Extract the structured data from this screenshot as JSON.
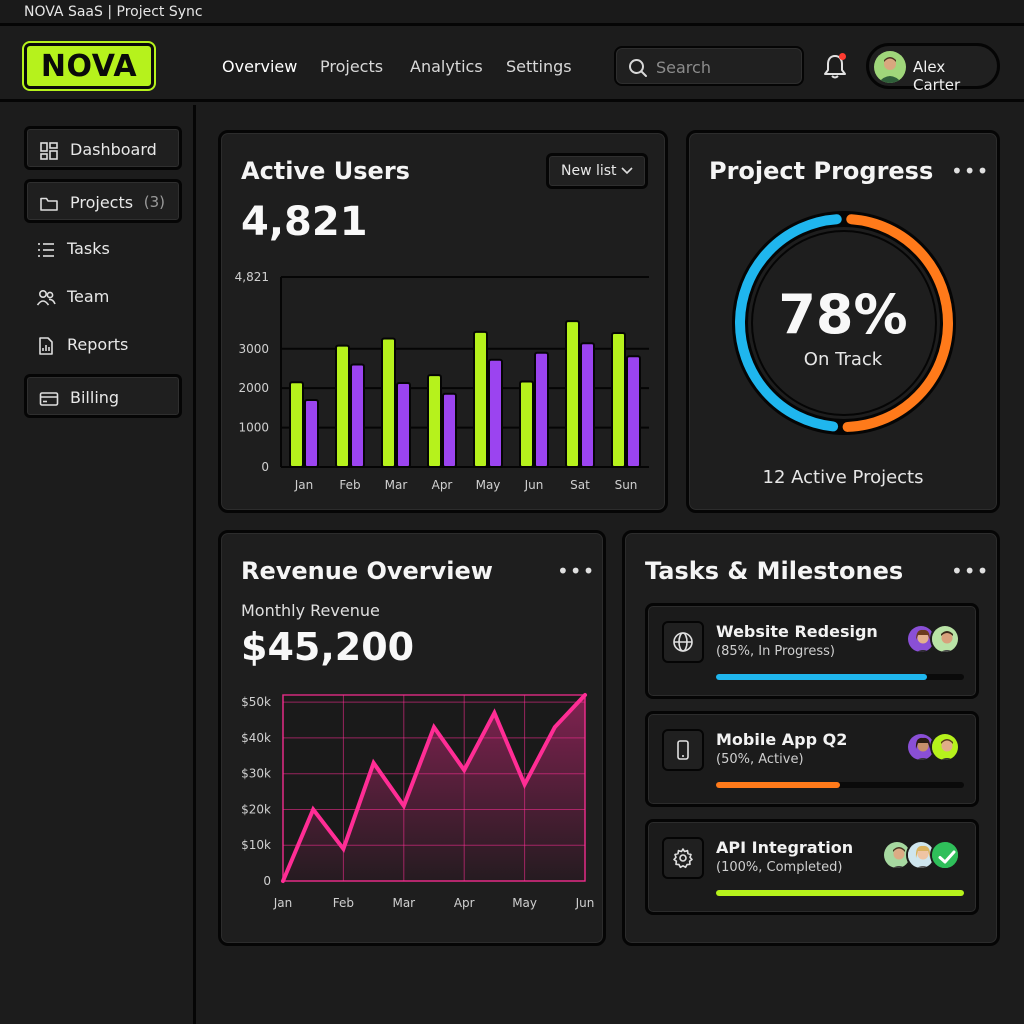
{
  "window": {
    "title": "NOVA SaaS | Project Sync"
  },
  "header": {
    "logo": "NOVA",
    "nav": [
      "Overview",
      "Projects",
      "Analytics",
      "Settings"
    ],
    "active_nav": "Overview",
    "search_placeholder": "Search",
    "user_name": "Alex Carter",
    "has_notification": true
  },
  "sidebar": {
    "items": [
      {
        "label": "Dashboard",
        "icon": "dashboard-icon",
        "boxed": true
      },
      {
        "label": "Projects",
        "count": "(3)",
        "icon": "folder-icon",
        "boxed": true
      },
      {
        "label": "Tasks",
        "icon": "list-icon",
        "boxed": false
      },
      {
        "label": "Team",
        "icon": "team-icon",
        "boxed": false
      },
      {
        "label": "Reports",
        "icon": "report-icon",
        "boxed": false
      },
      {
        "label": "Billing",
        "icon": "credit-card-icon",
        "boxed": true
      }
    ]
  },
  "active_users": {
    "title": "Active Users",
    "value": "4,821",
    "dropdown": "New list",
    "chart_data": {
      "type": "bar",
      "categories": [
        "Jan",
        "Feb",
        "Mar",
        "Apr",
        "May",
        "Jun",
        "Sat",
        "Sun"
      ],
      "series": [
        {
          "values": [
            2150,
            3080,
            3260,
            2330,
            3430,
            2170,
            3700,
            3400
          ],
          "color": "#b6f21c"
        },
        {
          "values": [
            1700,
            2600,
            2130,
            1860,
            2720,
            2900,
            3140,
            2810
          ],
          "color": "#9b44f0"
        }
      ],
      "ylim": [
        0,
        4821
      ],
      "yticks": [
        0,
        1000,
        2000,
        3000,
        4821
      ],
      "ytick_labels": [
        "0",
        "1000",
        "2000",
        "3000",
        "4,821"
      ]
    }
  },
  "project_progress": {
    "title": "Project Progress",
    "percent_label": "78%",
    "percent": 0.78,
    "status": "On Track",
    "footer": "12 Active Projects",
    "colors": {
      "ring_a": "#1fb6ee",
      "ring_b": "#ff7a1a"
    }
  },
  "revenue": {
    "title": "Revenue Overview",
    "subtitle": "Monthly Revenue",
    "value": "$45,200",
    "chart_data": {
      "type": "line",
      "x": [
        0,
        1,
        2,
        3,
        4,
        5,
        6,
        7,
        8,
        9,
        10
      ],
      "y": [
        0,
        20000,
        9000,
        33000,
        21000,
        43000,
        31000,
        47000,
        27000,
        43000,
        52000
      ],
      "xtick_positions": [
        0,
        2,
        4,
        6,
        8,
        10
      ],
      "xtick_labels": [
        "Jan",
        "Feb",
        "Mar",
        "Apr",
        "May",
        "Jun"
      ],
      "ylim": [
        0,
        52000
      ],
      "yticks": [
        0,
        10000,
        20000,
        30000,
        40000,
        50000
      ],
      "ytick_labels": [
        "0",
        "$10k",
        "$20k",
        "$30k",
        "$40k",
        "$50k"
      ],
      "color": "#ff2d95",
      "grid": true
    }
  },
  "tasks": {
    "title": "Tasks & Milestones",
    "items": [
      {
        "name": "Website Redesign",
        "status": "(85%, In Progress)",
        "progress": 0.85,
        "color": "#1fb6ee",
        "icon": "globe-icon"
      },
      {
        "name": "Mobile App Q2",
        "status": "(50%, Active)",
        "progress": 0.5,
        "color": "#ff7a1a",
        "icon": "phone-icon"
      },
      {
        "name": "API Integration",
        "status": "(100%, Completed)",
        "progress": 1.0,
        "color": "#b6f21c",
        "icon": "gear-icon",
        "completed": true
      }
    ]
  }
}
